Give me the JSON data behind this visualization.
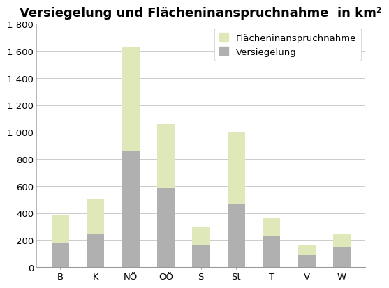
{
  "categories": [
    "B",
    "K",
    "NÖ",
    "OÖ",
    "S",
    "St",
    "T",
    "V",
    "W"
  ],
  "versiegelung": [
    175,
    250,
    855,
    585,
    165,
    470,
    230,
    95,
    150
  ],
  "flaecheninanspruchnahme_total": [
    380,
    500,
    1630,
    1060,
    295,
    1000,
    365,
    165,
    248
  ],
  "title": "Versiegelung und Flächeninanspruchnahme  in km²",
  "legend_flaechenin": "Flächeninanspruchnahme",
  "legend_versiegelung": "Versiegelung",
  "color_versiegelung": "#b0b0b0",
  "color_flaechenin": "#dfe8b8",
  "ylim": [
    0,
    1800
  ],
  "yticks": [
    0,
    200,
    400,
    600,
    800,
    1000,
    1200,
    1400,
    1600,
    1800
  ],
  "ytick_labels": [
    "0",
    "200",
    "400",
    "600",
    "800",
    "1 000",
    "1 200",
    "1 400",
    "1 600",
    "1 800"
  ],
  "background_color": "#ffffff",
  "plot_bg_color": "#f5f5f5",
  "title_fontsize": 13,
  "tick_fontsize": 9.5,
  "legend_fontsize": 9.5,
  "bar_width": 0.5,
  "grid_color": "#cccccc",
  "spine_color": "#999999"
}
